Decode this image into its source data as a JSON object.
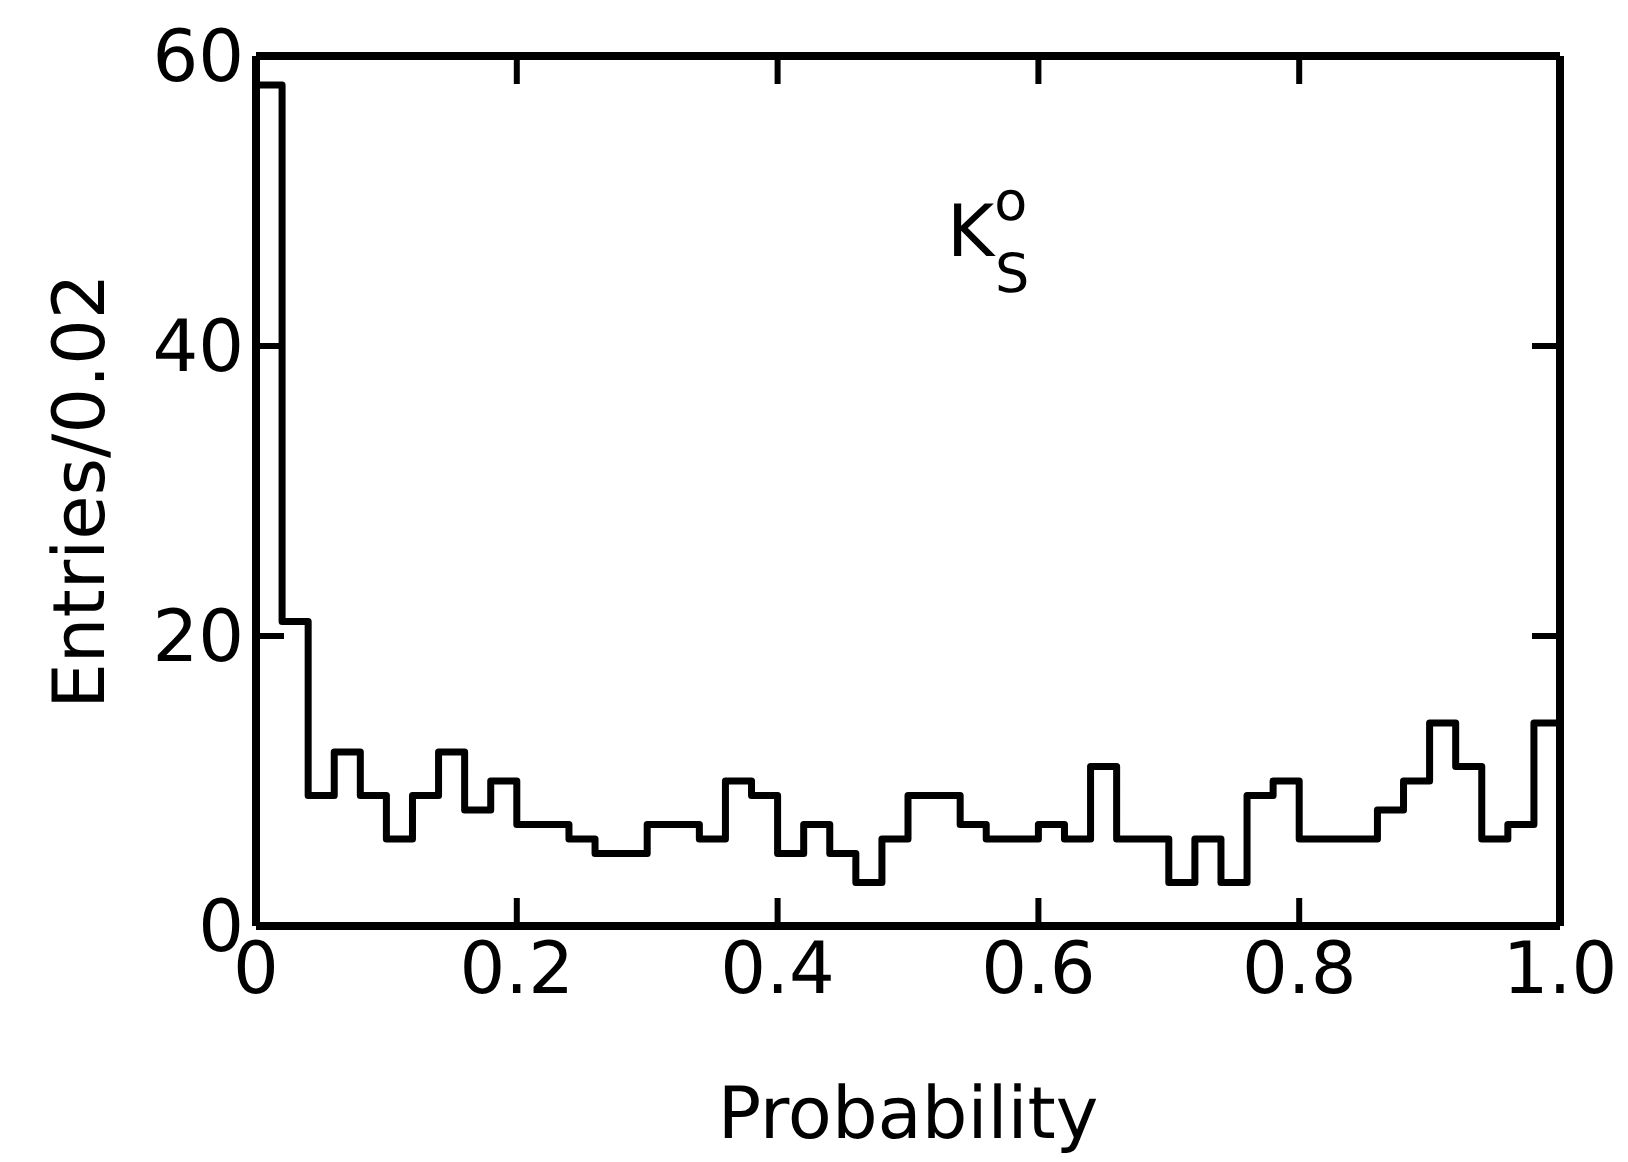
{
  "chart_data": {
    "type": "histogram",
    "xlabel": "Probability",
    "ylabel": "Entries/0.02",
    "bins": [
      0,
      0.02,
      0.04,
      0.06,
      0.08,
      0.1,
      0.12,
      0.14,
      0.16,
      0.18,
      0.2,
      0.22,
      0.24,
      0.26,
      0.28,
      0.3,
      0.32,
      0.34,
      0.36,
      0.38,
      0.4,
      0.42,
      0.44,
      0.46,
      0.48,
      0.5,
      0.52,
      0.54,
      0.56,
      0.58,
      0.6,
      0.62,
      0.64,
      0.66,
      0.68,
      0.7,
      0.72,
      0.74,
      0.76,
      0.78,
      0.8,
      0.82,
      0.84,
      0.86,
      0.88,
      0.9,
      0.92,
      0.94,
      0.96,
      0.98,
      1.0
    ],
    "values": [
      58,
      21,
      9,
      12,
      9,
      6,
      9,
      12,
      8,
      10,
      7,
      7,
      6,
      5,
      5,
      7,
      7,
      6,
      10,
      9,
      5,
      7,
      5,
      3,
      6,
      9,
      9,
      7,
      6,
      6,
      7,
      6,
      11,
      6,
      6,
      3,
      6,
      3,
      9,
      10,
      6,
      6,
      6,
      8,
      10,
      14,
      11,
      6,
      7,
      14
    ],
    "color": "#000000",
    "xlim": [
      0,
      1.0
    ],
    "ylim": [
      0,
      60
    ],
    "xticks": [
      0,
      0.2,
      0.4,
      0.6,
      0.8,
      {
        "value": 1.0,
        "label": "1.0"
      }
    ],
    "yticks": [
      0,
      20,
      40,
      60
    ],
    "annotations": [
      "K$^{o}$$_{S}$"
    ]
  }
}
